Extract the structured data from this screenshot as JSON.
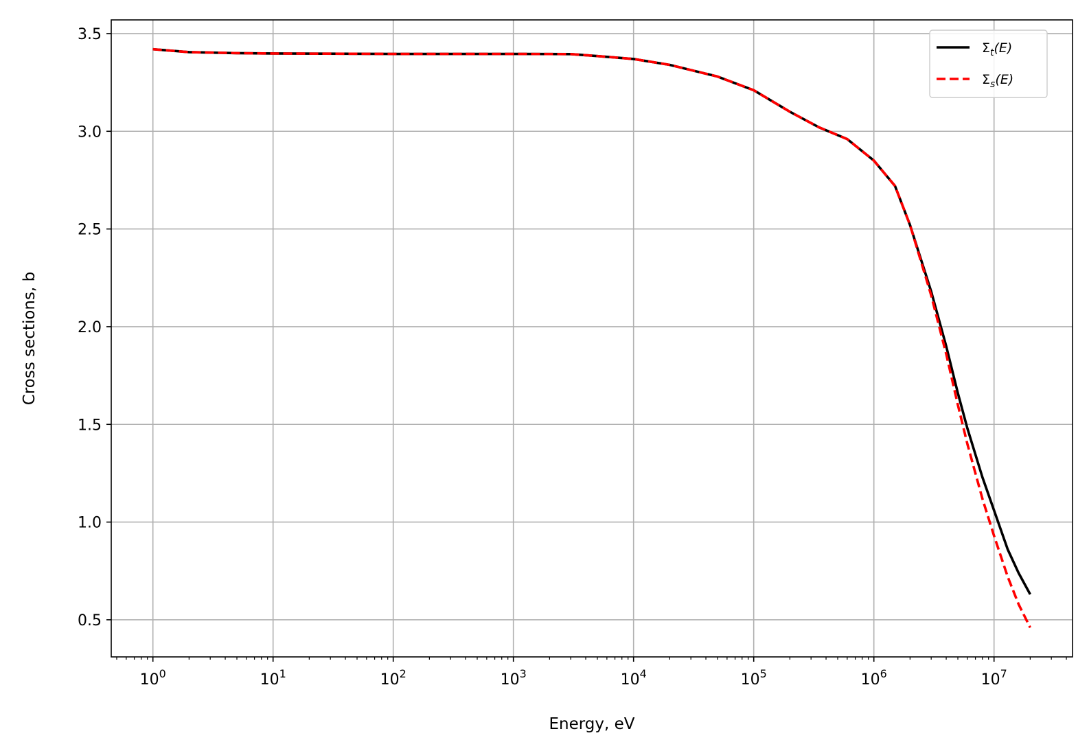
{
  "chart_data": {
    "type": "line",
    "title": "",
    "xlabel": "Energy, eV",
    "ylabel": "Cross sections, b",
    "xscale": "log",
    "xlim": [
      0.45,
      45000000
    ],
    "ylim": [
      0.31,
      3.57
    ],
    "grid": true,
    "legend_position": "top-right",
    "x_ticks": [
      {
        "value": 1,
        "base": "10",
        "exp": "0"
      },
      {
        "value": 10,
        "base": "10",
        "exp": "1"
      },
      {
        "value": 100,
        "base": "10",
        "exp": "2"
      },
      {
        "value": 1000,
        "base": "10",
        "exp": "3"
      },
      {
        "value": 10000,
        "base": "10",
        "exp": "4"
      },
      {
        "value": 100000,
        "base": "10",
        "exp": "5"
      },
      {
        "value": 1000000,
        "base": "10",
        "exp": "6"
      },
      {
        "value": 10000000,
        "base": "10",
        "exp": "7"
      }
    ],
    "y_ticks": [
      {
        "value": 0.5,
        "label": "0.5"
      },
      {
        "value": 1.0,
        "label": "1.0"
      },
      {
        "value": 1.5,
        "label": "1.5"
      },
      {
        "value": 2.0,
        "label": "2.0"
      },
      {
        "value": 2.5,
        "label": "2.5"
      },
      {
        "value": 3.0,
        "label": "3.0"
      },
      {
        "value": 3.5,
        "label": "3.5"
      }
    ],
    "series": [
      {
        "name": "Σt(E)",
        "legend_symbol": "Σ",
        "legend_sub": "t",
        "legend_arg": "(E)",
        "color": "#000000",
        "style": "solid",
        "points": [
          [
            1,
            3.42
          ],
          [
            2,
            3.405
          ],
          [
            5,
            3.4
          ],
          [
            10,
            3.398
          ],
          [
            100,
            3.396
          ],
          [
            1000,
            3.396
          ],
          [
            3000,
            3.395
          ],
          [
            5000,
            3.385
          ],
          [
            10000,
            3.37
          ],
          [
            20000,
            3.34
          ],
          [
            50000,
            3.28
          ],
          [
            100000,
            3.21
          ],
          [
            200000,
            3.1
          ],
          [
            350000,
            3.02
          ],
          [
            600000,
            2.96
          ],
          [
            1000000,
            2.85
          ],
          [
            1500000,
            2.72
          ],
          [
            2000000,
            2.52
          ],
          [
            3000000,
            2.18
          ],
          [
            4000000,
            1.9
          ],
          [
            5000000,
            1.66
          ],
          [
            6000000,
            1.48
          ],
          [
            8000000,
            1.23
          ],
          [
            10000000,
            1.06
          ],
          [
            13000000,
            0.86
          ],
          [
            16000000,
            0.74
          ],
          [
            20000000,
            0.63
          ]
        ]
      },
      {
        "name": "Σs(E)",
        "legend_symbol": "Σ",
        "legend_sub": "s",
        "legend_arg": "(E)",
        "color": "#ff0000",
        "style": "dashed",
        "points": [
          [
            1,
            3.42
          ],
          [
            2,
            3.405
          ],
          [
            5,
            3.4
          ],
          [
            10,
            3.398
          ],
          [
            100,
            3.396
          ],
          [
            1000,
            3.396
          ],
          [
            3000,
            3.395
          ],
          [
            5000,
            3.385
          ],
          [
            10000,
            3.37
          ],
          [
            20000,
            3.34
          ],
          [
            50000,
            3.28
          ],
          [
            100000,
            3.21
          ],
          [
            200000,
            3.1
          ],
          [
            350000,
            3.02
          ],
          [
            600000,
            2.96
          ],
          [
            1000000,
            2.85
          ],
          [
            1500000,
            2.72
          ],
          [
            2000000,
            2.52
          ],
          [
            3000000,
            2.16
          ],
          [
            4000000,
            1.86
          ],
          [
            5000000,
            1.6
          ],
          [
            6000000,
            1.4
          ],
          [
            8000000,
            1.12
          ],
          [
            10000000,
            0.93
          ],
          [
            13000000,
            0.72
          ],
          [
            16000000,
            0.58
          ],
          [
            20000000,
            0.46
          ]
        ]
      }
    ]
  }
}
